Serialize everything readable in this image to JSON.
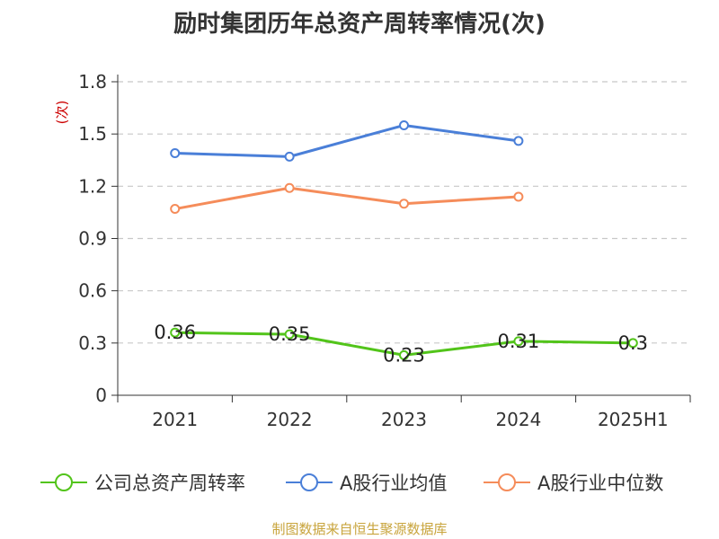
{
  "title": "励时集团历年总资产周转率情况(次)",
  "source": "制图数据来自恒生聚源数据库",
  "chart_data": {
    "type": "line",
    "title": "励时集团历年总资产周转率情况(次)",
    "ylabel": "(次)",
    "xlabel": "",
    "categories": [
      "2021",
      "2022",
      "2023",
      "2024",
      "2025H1"
    ],
    "ylim": [
      0,
      1.8
    ],
    "yticks": [
      "0",
      "0.3",
      "0.6",
      "0.9",
      "1.2",
      "1.5",
      "1.8"
    ],
    "grid": true,
    "legend_position": "bottom",
    "series": [
      {
        "name": "公司总资产周转率",
        "color": "#52c41a",
        "values": [
          0.36,
          0.35,
          0.23,
          0.31,
          0.3
        ],
        "labels": [
          "0.36",
          "0.35",
          "0.23",
          "0.31",
          "0.3"
        ]
      },
      {
        "name": "A股行业均值",
        "color": "#4a7fd8",
        "values": [
          1.39,
          1.37,
          1.55,
          1.46,
          null
        ]
      },
      {
        "name": "A股行业中位数",
        "color": "#f58c5a",
        "values": [
          1.07,
          1.19,
          1.1,
          1.14,
          null
        ]
      }
    ]
  }
}
